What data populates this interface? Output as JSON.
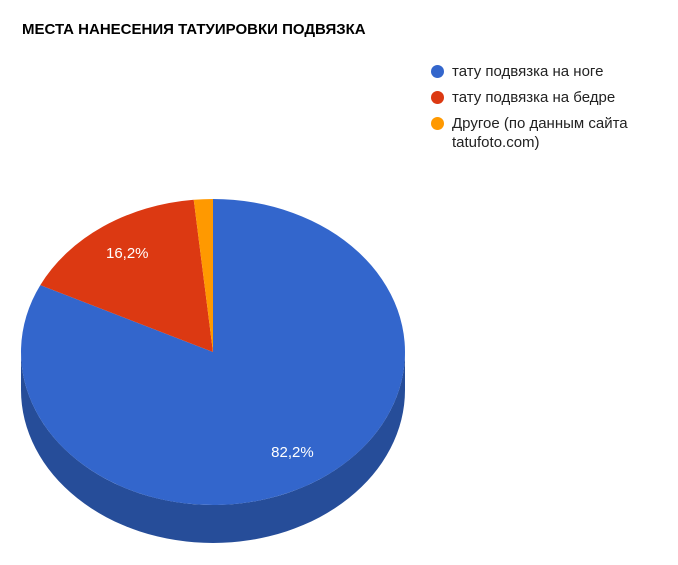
{
  "chart_data": {
    "type": "pie",
    "title": "МЕСТА НАНЕСЕНИЯ ТАТУИРОВКИ ПОДВЯЗКА",
    "categories": [
      "тату подвязка на ноге",
      "тату подвязка на бедре",
      "Другое (по данным сайта tatufoto.com)"
    ],
    "values": [
      82.2,
      16.2,
      1.6
    ],
    "value_labels": [
      "82,2%",
      "16,2%",
      null
    ],
    "colors": [
      "#3366cc",
      "#dc3912",
      "#ff9900"
    ],
    "side_colors": [
      "#264d99",
      "#a52b0e",
      "#bf7300"
    ],
    "legend": "right"
  }
}
